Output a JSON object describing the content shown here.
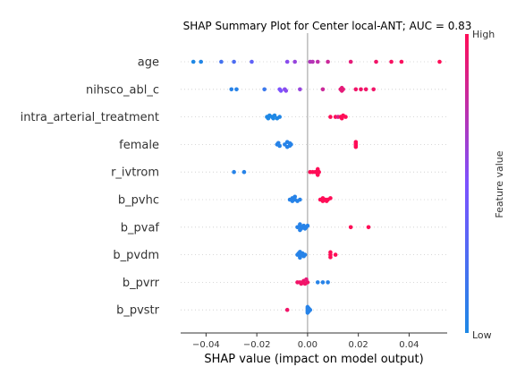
{
  "chart_data": {
    "type": "scatter",
    "title": "SHAP Summary Plot for Center local-ANT; AUC = 0.83",
    "xlabel": "SHAP value (impact on model output)",
    "xlim": [
      -0.05,
      0.055
    ],
    "xticks": [
      -0.04,
      -0.02,
      0.0,
      0.02,
      0.04
    ],
    "xtick_labels": [
      "−0.04",
      "−0.02",
      "0.00",
      "0.02",
      "0.04"
    ],
    "grid": false,
    "colorbar": {
      "label": "Feature value",
      "high": "High",
      "low": "Low",
      "low_color": "#1e88e5",
      "high_color": "#ff0d57"
    },
    "features": [
      {
        "name": "age",
        "points": [
          {
            "x": -0.045,
            "v": 0.0
          },
          {
            "x": -0.042,
            "v": 0.02
          },
          {
            "x": -0.034,
            "v": 0.2
          },
          {
            "x": -0.029,
            "v": 0.25
          },
          {
            "x": -0.022,
            "v": 0.35
          },
          {
            "x": -0.008,
            "v": 0.55
          },
          {
            "x": -0.005,
            "v": 0.6
          },
          {
            "x": 0.001,
            "v": 0.7
          },
          {
            "x": 0.002,
            "v": 0.72
          },
          {
            "x": 0.004,
            "v": 0.75
          },
          {
            "x": 0.008,
            "v": 0.8
          },
          {
            "x": 0.017,
            "v": 0.9
          },
          {
            "x": 0.027,
            "v": 0.95
          },
          {
            "x": 0.033,
            "v": 0.97
          },
          {
            "x": 0.037,
            "v": 0.98
          },
          {
            "x": 0.052,
            "v": 1.0
          }
        ]
      },
      {
        "name": "nihsco_abl_c",
        "points": [
          {
            "x": -0.03,
            "v": 0.05
          },
          {
            "x": -0.028,
            "v": 0.05
          },
          {
            "x": -0.017,
            "v": 0.15
          },
          {
            "x": -0.011,
            "v": 0.5
          },
          {
            "x": -0.0105,
            "v": 0.5,
            "dy": 0.35
          },
          {
            "x": -0.009,
            "v": 0.55
          },
          {
            "x": -0.0085,
            "v": 0.55,
            "dy": 0.35
          },
          {
            "x": -0.003,
            "v": 0.6
          },
          {
            "x": 0.006,
            "v": 0.8
          },
          {
            "x": 0.013,
            "v": 0.9
          },
          {
            "x": 0.0135,
            "v": 0.9,
            "dy": -0.35
          },
          {
            "x": 0.0135,
            "v": 0.9,
            "dy": 0.35
          },
          {
            "x": 0.014,
            "v": 0.9
          },
          {
            "x": 0.019,
            "v": 0.95
          },
          {
            "x": 0.021,
            "v": 0.95
          },
          {
            "x": 0.023,
            "v": 0.95
          },
          {
            "x": 0.026,
            "v": 0.95
          }
        ]
      },
      {
        "name": "intra_arterial_treatment",
        "points": [
          {
            "x": -0.016,
            "v": 0.0
          },
          {
            "x": -0.0155,
            "v": 0.0,
            "dy": 0.35
          },
          {
            "x": -0.015,
            "v": 0.0,
            "dy": -0.35
          },
          {
            "x": -0.014,
            "v": 0.0
          },
          {
            "x": -0.0135,
            "v": 0.0,
            "dy": 0.35
          },
          {
            "x": -0.013,
            "v": 0.0,
            "dy": -0.35
          },
          {
            "x": -0.012,
            "v": 0.0,
            "dy": 0.35
          },
          {
            "x": -0.011,
            "v": 0.02
          },
          {
            "x": 0.009,
            "v": 1.0
          },
          {
            "x": 0.011,
            "v": 1.0
          },
          {
            "x": 0.012,
            "v": 0.85
          },
          {
            "x": 0.013,
            "v": 1.0
          },
          {
            "x": 0.0135,
            "v": 1.0,
            "dy": 0.35
          },
          {
            "x": 0.014,
            "v": 1.0,
            "dy": -0.35
          },
          {
            "x": 0.015,
            "v": 1.0
          }
        ]
      },
      {
        "name": "female",
        "points": [
          {
            "x": -0.012,
            "v": 0.05
          },
          {
            "x": -0.0115,
            "v": 0.05,
            "dy": -0.35
          },
          {
            "x": -0.011,
            "v": 0.05,
            "dy": 0.35
          },
          {
            "x": -0.009,
            "v": 0.05
          },
          {
            "x": -0.008,
            "v": 0.05,
            "dy": -0.6
          },
          {
            "x": -0.008,
            "v": 0.05,
            "dy": 0.6
          },
          {
            "x": -0.007,
            "v": 0.05,
            "dy": -0.3
          },
          {
            "x": -0.007,
            "v": 0.05,
            "dy": 0.3
          },
          {
            "x": -0.0065,
            "v": 0.05
          },
          {
            "x": 0.019,
            "v": 1.0,
            "dy": -0.6
          },
          {
            "x": 0.019,
            "v": 1.0,
            "dy": -0.2
          },
          {
            "x": 0.019,
            "v": 1.0,
            "dy": 0.2
          },
          {
            "x": 0.019,
            "v": 1.0,
            "dy": 0.6
          }
        ]
      },
      {
        "name": "r_ivtrom",
        "points": [
          {
            "x": -0.029,
            "v": 0.05
          },
          {
            "x": -0.025,
            "v": 0.05
          },
          {
            "x": 0.001,
            "v": 1.0
          },
          {
            "x": 0.002,
            "v": 1.0
          },
          {
            "x": 0.003,
            "v": 1.0
          },
          {
            "x": 0.004,
            "v": 1.0,
            "dy": -0.7
          },
          {
            "x": 0.004,
            "v": 1.0,
            "dy": -0.35
          },
          {
            "x": 0.004,
            "v": 1.0,
            "dy": 0.35
          },
          {
            "x": 0.004,
            "v": 1.0,
            "dy": 0.7
          },
          {
            "x": 0.0045,
            "v": 1.0
          }
        ]
      },
      {
        "name": "b_pvhc",
        "points": [
          {
            "x": -0.007,
            "v": 0.05
          },
          {
            "x": -0.006,
            "v": 0.05,
            "dy": -0.35
          },
          {
            "x": -0.006,
            "v": 0.05,
            "dy": 0.35
          },
          {
            "x": -0.005,
            "v": 0.05,
            "dy": -0.7
          },
          {
            "x": -0.005,
            "v": 0.05
          },
          {
            "x": -0.004,
            "v": 0.05,
            "dy": 0.35
          },
          {
            "x": -0.003,
            "v": 0.05
          },
          {
            "x": 0.005,
            "v": 1.0
          },
          {
            "x": 0.006,
            "v": 1.0,
            "dy": -0.35
          },
          {
            "x": 0.006,
            "v": 1.0,
            "dy": 0.35
          },
          {
            "x": 0.007,
            "v": 1.0
          },
          {
            "x": 0.0075,
            "v": 1.0,
            "dy": 0.35
          },
          {
            "x": 0.008,
            "v": 1.0
          },
          {
            "x": 0.009,
            "v": 1.0,
            "dy": -0.35
          }
        ]
      },
      {
        "name": "b_pvaf",
        "points": [
          {
            "x": -0.004,
            "v": 0.05
          },
          {
            "x": -0.003,
            "v": 0.05,
            "dy": -0.35
          },
          {
            "x": -0.0025,
            "v": 0.05,
            "dy": 0.35
          },
          {
            "x": -0.002,
            "v": 0.05
          },
          {
            "x": -0.0015,
            "v": 0.05,
            "dy": -0.35
          },
          {
            "x": -0.001,
            "v": 0.05,
            "dy": 0.35
          },
          {
            "x": -0.0005,
            "v": 0.05
          },
          {
            "x": 0.0,
            "v": 0.05,
            "dy": -0.35
          },
          {
            "x": -0.003,
            "v": 0.05,
            "dy": -0.7
          },
          {
            "x": -0.003,
            "v": 0.05,
            "dy": 0.7
          },
          {
            "x": 0.017,
            "v": 1.0
          },
          {
            "x": 0.024,
            "v": 1.0
          }
        ]
      },
      {
        "name": "b_pvdm",
        "points": [
          {
            "x": -0.004,
            "v": 0.05
          },
          {
            "x": -0.0035,
            "v": 0.05,
            "dy": -0.35
          },
          {
            "x": -0.003,
            "v": 0.05,
            "dy": 0.35
          },
          {
            "x": -0.0025,
            "v": 0.05
          },
          {
            "x": -0.002,
            "v": 0.05,
            "dy": -0.35
          },
          {
            "x": -0.0015,
            "v": 0.05,
            "dy": 0.35
          },
          {
            "x": -0.001,
            "v": 0.05
          },
          {
            "x": -0.003,
            "v": 0.05,
            "dy": -0.7
          },
          {
            "x": -0.003,
            "v": 0.05,
            "dy": 0.7
          },
          {
            "x": 0.009,
            "v": 1.0,
            "dy": -0.6
          },
          {
            "x": 0.009,
            "v": 1.0
          },
          {
            "x": 0.009,
            "v": 1.0,
            "dy": 0.6
          },
          {
            "x": 0.011,
            "v": 1.0
          }
        ]
      },
      {
        "name": "b_pvrr",
        "points": [
          {
            "x": -0.004,
            "v": 0.95
          },
          {
            "x": -0.003,
            "v": 0.95
          },
          {
            "x": -0.002,
            "v": 0.95
          },
          {
            "x": -0.001,
            "v": 0.95,
            "dy": 0.35
          },
          {
            "x": 0.0,
            "v": 0.95
          },
          {
            "x": -0.0015,
            "v": 0.95,
            "dy": -0.35
          },
          {
            "x": -0.0025,
            "v": 0.95,
            "dy": 0.35
          },
          {
            "x": -0.0005,
            "v": 0.9,
            "dy": -0.7
          },
          {
            "x": 0.004,
            "v": 0.05
          },
          {
            "x": 0.006,
            "v": 0.05
          },
          {
            "x": 0.008,
            "v": 0.05
          }
        ]
      },
      {
        "name": "b_pvstr",
        "points": [
          {
            "x": -0.008,
            "v": 0.95
          },
          {
            "x": 0.0,
            "v": 0.05,
            "dy": -0.7
          },
          {
            "x": 0.0,
            "v": 0.05,
            "dy": -0.35
          },
          {
            "x": 0.0,
            "v": 0.05
          },
          {
            "x": 0.0,
            "v": 0.05,
            "dy": 0.35
          },
          {
            "x": 0.0,
            "v": 0.05,
            "dy": 0.7
          },
          {
            "x": 0.0005,
            "v": 0.05,
            "dy": -0.35
          },
          {
            "x": 0.0005,
            "v": 0.05,
            "dy": 0.35
          },
          {
            "x": 0.001,
            "v": 0.05
          }
        ]
      }
    ]
  }
}
